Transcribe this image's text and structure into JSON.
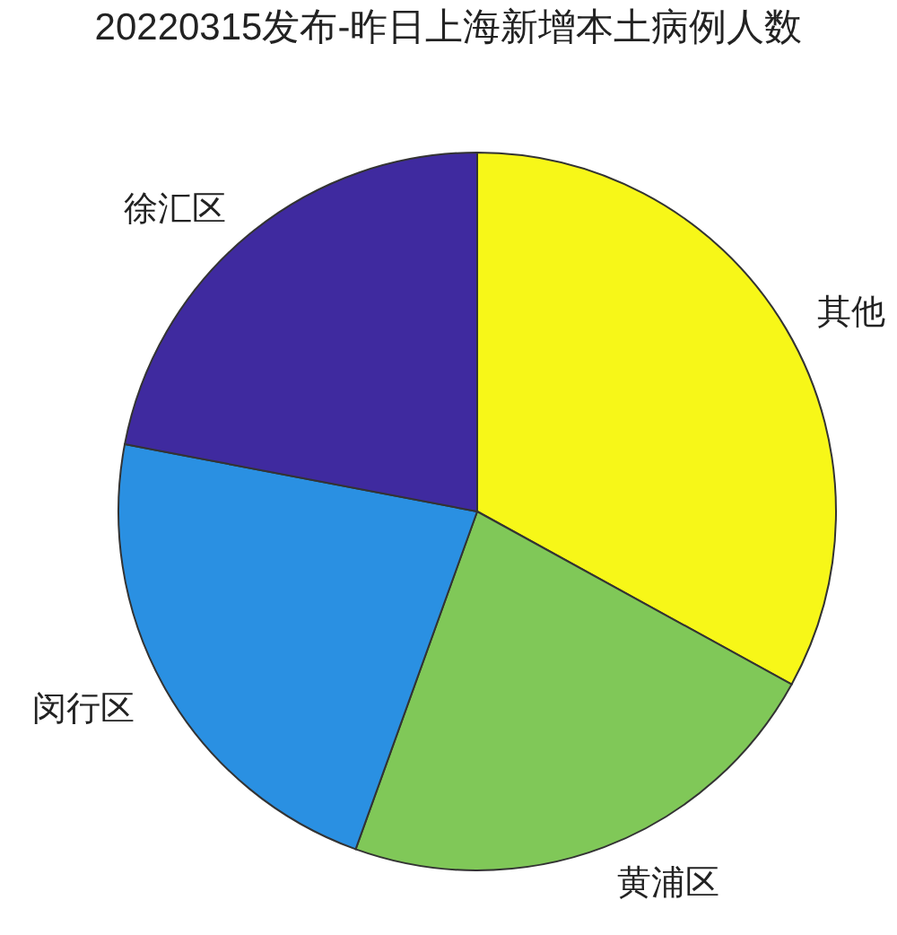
{
  "chart_data": {
    "type": "pie",
    "title": "20220315发布-昨日上海新增本土病例人数",
    "categories": [
      "其他",
      "黄浦区",
      "闵行区",
      "徐汇区"
    ],
    "values": [
      33.0,
      22.5,
      22.5,
      22.0
    ],
    "colors": [
      "#f7f718",
      "#80c858",
      "#2a90e2",
      "#3f2a9f"
    ]
  }
}
